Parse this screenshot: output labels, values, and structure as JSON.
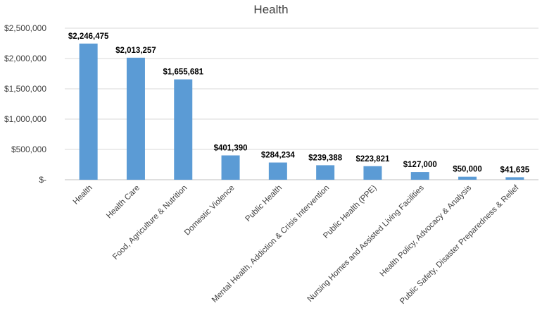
{
  "chart_data": {
    "type": "bar",
    "title": "Health",
    "categories": [
      "Health",
      "Health Care",
      "Food, Agriculture & Nutrition",
      "Domestic Violence",
      "Public Health",
      "Mental Health, Addiction & Crisis Intervention",
      "Public Health (PPE)",
      "Nursing Homes and Assisted Living Facilities",
      "Health Policy, Advocacy & Analysis",
      "Public Safety, Disaster Preparedness & Relief"
    ],
    "values": [
      2246475,
      2013257,
      1655681,
      401390,
      284234,
      239388,
      223821,
      127000,
      50000,
      41635
    ],
    "data_labels": [
      "$2,246,475",
      "$2,013,257",
      "$1,655,681",
      "$401,390",
      "$284,234",
      "$239,388",
      "$223,821",
      "$127,000",
      "$50,000",
      "$41,635"
    ],
    "y_ticks": [
      {
        "value": 0,
        "label": "$-"
      },
      {
        "value": 500000,
        "label": "$500,000"
      },
      {
        "value": 1000000,
        "label": "$1,000,000"
      },
      {
        "value": 1500000,
        "label": "$1,500,000"
      },
      {
        "value": 2000000,
        "label": "$2,000,000"
      },
      {
        "value": 2500000,
        "label": "$2,500,000"
      }
    ],
    "ylim": [
      0,
      2500000
    ],
    "xlabel": "",
    "ylabel": "",
    "grid": true,
    "legend": "none",
    "bar_color": "#5b9bd5"
  }
}
